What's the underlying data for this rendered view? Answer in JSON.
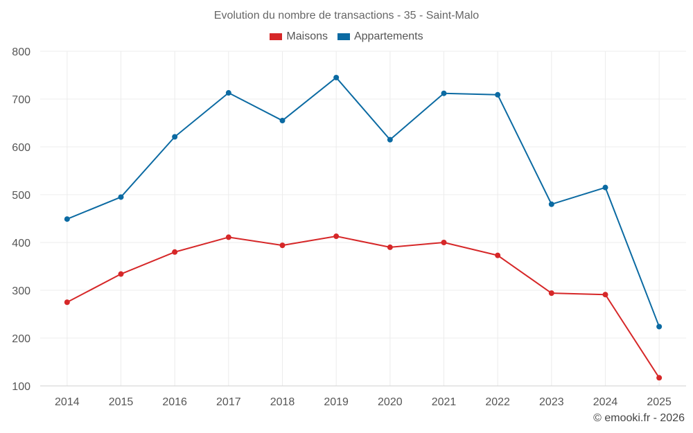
{
  "chart_data": {
    "type": "line",
    "title": "Evolution du nombre de transactions - 35 - Saint-Malo",
    "categories": [
      "2014",
      "2015",
      "2016",
      "2017",
      "2018",
      "2019",
      "2020",
      "2021",
      "2022",
      "2023",
      "2024",
      "2025"
    ],
    "series": [
      {
        "name": "Maisons",
        "color": "#d62728",
        "values": [
          275,
          334,
          380,
          411,
          394,
          413,
          390,
          400,
          373,
          294,
          291,
          117
        ]
      },
      {
        "name": "Appartements",
        "color": "#0b6aa2",
        "values": [
          449,
          495,
          621,
          713,
          655,
          745,
          615,
          712,
          709,
          480,
          515,
          224
        ]
      }
    ],
    "ylim": [
      100,
      800
    ],
    "yticks": [
      100,
      200,
      300,
      400,
      500,
      600,
      700,
      800
    ],
    "grid": true,
    "legend_position": "top-center"
  },
  "credit": "© emooki.fr - 2026"
}
